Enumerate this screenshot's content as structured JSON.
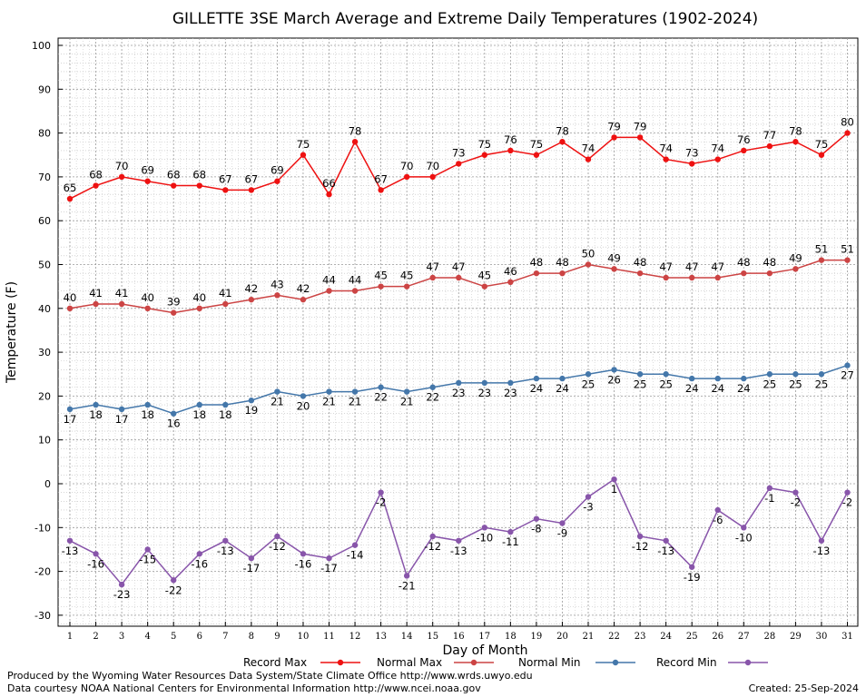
{
  "chart_data": {
    "type": "line",
    "title": "GILLETTE 3SE March Average and Extreme Daily Temperatures (1902-2024)",
    "xlabel": "Day of Month",
    "ylabel": "Temperature (F)",
    "x": [
      1,
      2,
      3,
      4,
      5,
      6,
      7,
      8,
      9,
      10,
      11,
      12,
      13,
      14,
      15,
      16,
      17,
      18,
      19,
      20,
      21,
      22,
      23,
      24,
      25,
      26,
      27,
      28,
      29,
      30,
      31
    ],
    "xlim": [
      1,
      31
    ],
    "ylim": [
      -33,
      100
    ],
    "yticks": [
      100,
      90,
      80,
      70,
      60,
      50,
      40,
      30,
      20,
      10,
      0,
      -10,
      -20,
      -30
    ],
    "grid": true,
    "legend_position": "bottom",
    "series": [
      {
        "name": "Record Max",
        "color": "#ee1111",
        "label_position": "above",
        "values": [
          65,
          68,
          70,
          69,
          68,
          68,
          67,
          67,
          69,
          75,
          66,
          78,
          67,
          70,
          70,
          73,
          75,
          76,
          75,
          78,
          74,
          79,
          79,
          74,
          73,
          74,
          76,
          77,
          78,
          75,
          80
        ]
      },
      {
        "name": "Normal Max",
        "color": "#cc4444",
        "label_position": "above",
        "values": [
          40,
          41,
          41,
          40,
          39,
          40,
          41,
          42,
          43,
          42,
          44,
          44,
          45,
          45,
          47,
          47,
          45,
          46,
          48,
          48,
          50,
          49,
          48,
          47,
          47,
          47,
          48,
          48,
          49,
          51,
          51
        ]
      },
      {
        "name": "Normal Min",
        "color": "#4477aa",
        "label_position": "below",
        "values": [
          17,
          18,
          17,
          18,
          16,
          18,
          18,
          19,
          21,
          20,
          21,
          21,
          22,
          21,
          22,
          23,
          23,
          23,
          24,
          24,
          25,
          26,
          25,
          25,
          24,
          24,
          24,
          25,
          25,
          25,
          27
        ]
      },
      {
        "name": "Record Min",
        "color": "#8855aa",
        "label_position": "below",
        "values": [
          -13,
          -16,
          -23,
          -15,
          -22,
          -16,
          -13,
          -17,
          -12,
          -16,
          -17,
          -14,
          -2,
          -21,
          -12,
          -13,
          -10,
          -11,
          -8,
          -9,
          -3,
          1,
          -12,
          -13,
          -19,
          -6,
          -10,
          -1,
          -2,
          -13,
          -2
        ]
      }
    ]
  },
  "footer": {
    "produced_by": "Produced by the Wyoming Water Resources Data System/State Climate Office http://www.wrds.uwyo.edu",
    "courtesy": "Data courtesy NOAA National Centers for Environmental Information http://www.ncei.noaa.gov",
    "created": "Created:  25-Sep-2024"
  }
}
